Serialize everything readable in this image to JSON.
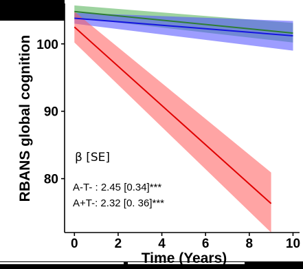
{
  "chart_data": {
    "type": "line",
    "title": "",
    "xlabel": "Time (Years)",
    "ylabel": "RBANS global cognition",
    "x_ticks": [
      0,
      2,
      4,
      6,
      8,
      10
    ],
    "y_ticks": [
      80,
      90,
      100
    ],
    "xlim": [
      -0.45,
      10.3
    ],
    "ylim": [
      72,
      106
    ],
    "grid": false,
    "legend": "none",
    "series": [
      {
        "color": "#2e7d32",
        "band_color": "#4caf50",
        "x": [
          0,
          10
        ],
        "y": [
          104.8,
          101.6
        ],
        "lower": [
          103.9,
          100.2
        ],
        "upper": [
          105.7,
          103.1
        ]
      },
      {
        "color": "#1414e0",
        "band_color": "#4d4dff",
        "x": [
          0,
          10
        ],
        "y": [
          103.8,
          101.2
        ],
        "lower": [
          103.0,
          99.0
        ],
        "upper": [
          104.6,
          103.4
        ]
      },
      {
        "color": "#e00000",
        "band_color": "#ff5a5a",
        "x": [
          0,
          9
        ],
        "y": [
          102.5,
          76.3
        ],
        "lower": [
          100.2,
          72.0
        ],
        "upper": [
          104.8,
          80.9
        ]
      }
    ],
    "annotations": {
      "beta_header": "β  [SE]",
      "line1": "A-T- : 2.45 [0.34]***",
      "line2": "A+T-: 2.32 [0. 36]***"
    }
  }
}
